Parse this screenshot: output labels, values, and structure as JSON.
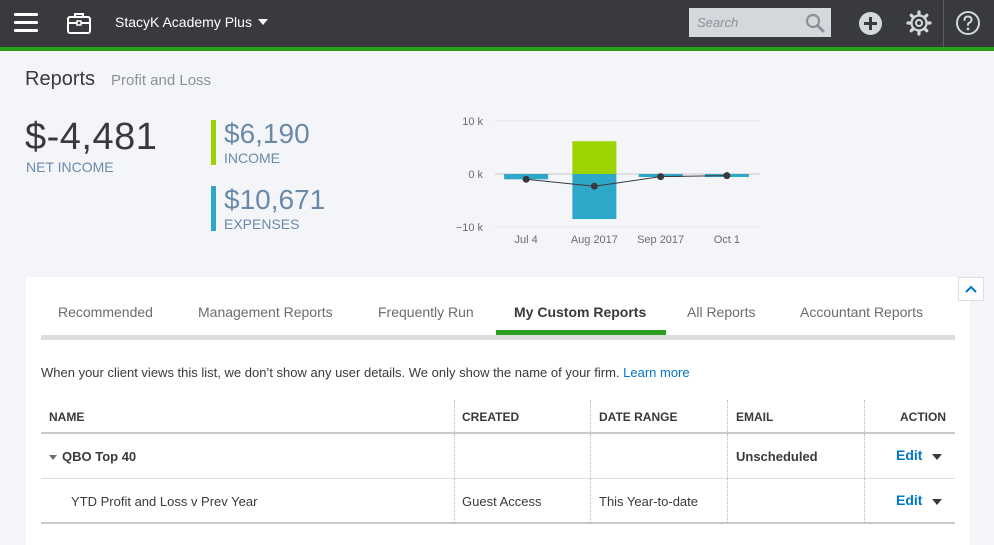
{
  "topbar": {
    "company_name": "StacyK Academy Plus",
    "search_placeholder": "Search",
    "icons": [
      "hamburger-icon",
      "briefcase-icon",
      "search-icon",
      "plus-icon",
      "gear-icon",
      "help-icon"
    ]
  },
  "page": {
    "title": "Reports",
    "subtitle": "Profit and Loss"
  },
  "kpis": {
    "net_income": {
      "value": "$-4,481",
      "label": "NET INCOME"
    },
    "income": {
      "value": "$6,190",
      "label": "INCOME",
      "color": "#9dd300"
    },
    "expenses": {
      "value": "$10,671",
      "label": "EXPENSES",
      "color": "#2ea7c8"
    }
  },
  "chart_data": {
    "type": "bar",
    "categories": [
      "Jul 4",
      "Aug 2017",
      "Sep 2017",
      "Oct 1"
    ],
    "series": [
      {
        "values": [
          0,
          6190,
          0,
          0
        ],
        "color": "#9dd300"
      },
      {
        "values": [
          -1000,
          -8500,
          -500,
          -300
        ],
        "color": "#2ea7c8"
      },
      {
        "values": [
          -1000,
          -2300,
          -500,
          -300
        ],
        "color": "#393a3d"
      }
    ],
    "y_ticks": [
      "10 k",
      "0 k",
      "−10 k"
    ],
    "ylim": [
      -10000,
      10000
    ],
    "grid": true
  },
  "tabs": [
    {
      "label": "Recommended",
      "active": false
    },
    {
      "label": "Management Reports",
      "active": false
    },
    {
      "label": "Frequently Run",
      "active": false
    },
    {
      "label": "My Custom Reports",
      "active": true
    },
    {
      "label": "All Reports",
      "active": false
    },
    {
      "label": "Accountant Reports",
      "active": false
    }
  ],
  "notice": {
    "text": "When your client views this list, we don’t show any user details. We only show the name of your firm.",
    "link": "Learn more"
  },
  "table": {
    "headers": {
      "name": "NAME",
      "created": "CREATED",
      "date_range": "DATE RANGE",
      "email": "EMAIL",
      "action": "ACTION"
    },
    "rows": [
      {
        "name": "QBO Top 40",
        "created": "",
        "date_range": "",
        "email": "Unscheduled",
        "action": "Edit"
      },
      {
        "name": "YTD Profit and Loss v Prev Year",
        "created": "Guest Access",
        "date_range": "This Year-to-date",
        "email": "",
        "action": "Edit"
      }
    ]
  },
  "colors": {
    "topbar": "#393a3d",
    "accent_green": "#2ca01c",
    "link_blue": "#0077c5"
  }
}
